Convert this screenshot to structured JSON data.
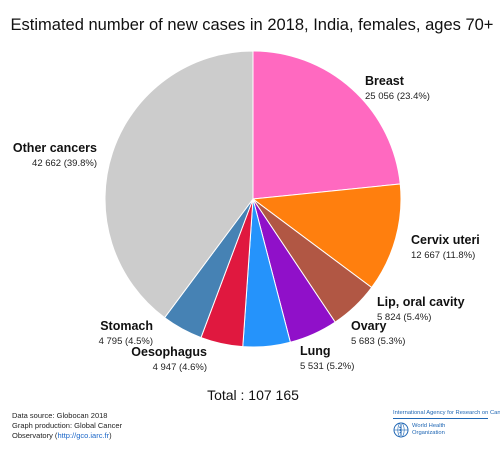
{
  "chart_data": {
    "type": "pie",
    "title": "Estimated number of new cases in 2018, India, females, ages 70+",
    "total_label": "Total : 107 165",
    "slices": [
      {
        "name": "Breast",
        "value": 25056,
        "value_label": "25 056 (23.4%)",
        "color": "#ff69c0"
      },
      {
        "name": "Cervix uteri",
        "value": 12667,
        "value_label": "12 667 (11.8%)",
        "color": "#ff7f0e"
      },
      {
        "name": "Lip, oral cavity",
        "value": 5824,
        "value_label": "5 824 (5.4%)",
        "color": "#b15744"
      },
      {
        "name": "Ovary",
        "value": 5683,
        "value_label": "5 683 (5.3%)",
        "color": "#9010c9"
      },
      {
        "name": "Lung",
        "value": 5531,
        "value_label": "5 531 (5.2%)",
        "color": "#2593fb"
      },
      {
        "name": "Oesophagus",
        "value": 4947,
        "value_label": "4 947 (4.6%)",
        "color": "#e0183f"
      },
      {
        "name": "Stomach",
        "value": 4795,
        "value_label": "4 795 (4.5%)",
        "color": "#4682b4"
      },
      {
        "name": "Other cancers",
        "value": 42662,
        "value_label": "42 662 (39.8%)",
        "color": "#cccccc"
      }
    ]
  },
  "footer": {
    "line1": "Data source: Globocan 2018",
    "line2": "Graph production: Global Cancer",
    "line3_prefix": "Observatory (",
    "line3_link": "http://gco.iarc.fr",
    "line3_suffix": ")"
  },
  "logos": {
    "iarc_name": "International Agency for Research on Cancer",
    "who_line1": "World Health",
    "who_line2": "Organization"
  }
}
